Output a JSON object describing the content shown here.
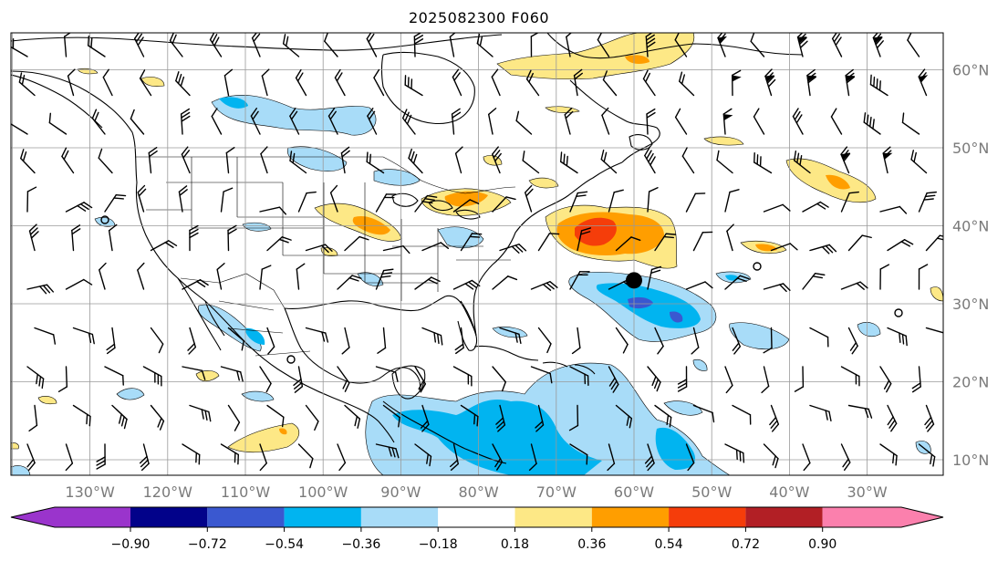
{
  "title": "2025082300 F060",
  "map": {
    "longitude_labels": [
      "130°W",
      "120°W",
      "110°W",
      "100°W",
      "90°W",
      "80°W",
      "70°W",
      "60°W",
      "50°W",
      "40°W",
      "30°W"
    ],
    "latitude_labels": [
      "60°N",
      "50°N",
      "40°N",
      "30°N",
      "20°N",
      "10°N"
    ],
    "storm_marker": {
      "longitude": -60,
      "latitude": 33
    }
  },
  "colorbar": {
    "colors": [
      "#9a34cc",
      "#02028a",
      "#3a58d0",
      "#01b4f0",
      "#a8dcf8",
      "#ffffff",
      "#fde886",
      "#ff9e00",
      "#f53d0a",
      "#b21f25",
      "#fb80ad"
    ],
    "under_color": "#9a34cc",
    "over_color": "#fb80ad",
    "tick_labels": [
      "−0.90",
      "−0.72",
      "−0.54",
      "−0.36",
      "−0.18",
      "0.18",
      "0.36",
      "0.54",
      "0.72",
      "0.90"
    ]
  }
}
